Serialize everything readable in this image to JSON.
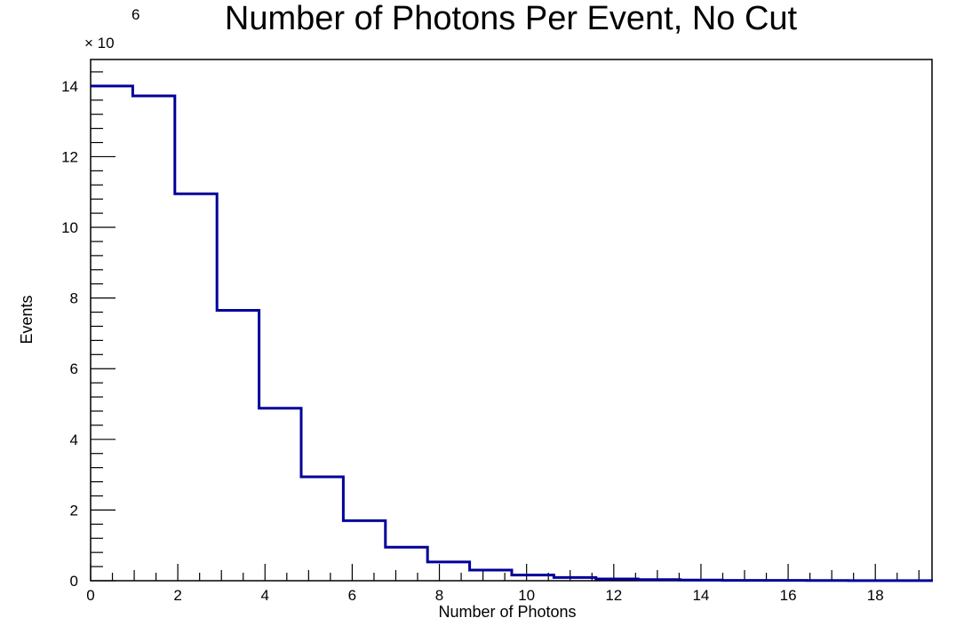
{
  "chart_data": {
    "type": "bar",
    "title": "Number of Photons Per Event, No Cut",
    "xlabel": "Number of Photons",
    "ylabel": "Events",
    "y_multiplier_base": "× 10",
    "y_multiplier_exponent": "6",
    "xlim": [
      0,
      19.3
    ],
    "ylim": [
      0,
      14.75
    ],
    "x_ticks": [
      "0",
      "2",
      "4",
      "6",
      "8",
      "10",
      "12",
      "14",
      "16",
      "18"
    ],
    "y_ticks": [
      "0",
      "2",
      "4",
      "6",
      "8",
      "10",
      "12",
      "14"
    ],
    "bin_edges": [
      0,
      0.966,
      1.932,
      2.898,
      3.864,
      4.83,
      5.796,
      6.762,
      7.728,
      8.694,
      9.66,
      10.626,
      11.592,
      12.558,
      13.524,
      14.49,
      15.456,
      16.422,
      17.388,
      18.354,
      19.32
    ],
    "values": [
      14.0,
      13.72,
      10.95,
      7.65,
      4.88,
      2.94,
      1.7,
      0.95,
      0.53,
      0.3,
      0.16,
      0.09,
      0.05,
      0.03,
      0.02,
      0.01,
      0.01,
      0.005,
      0.003,
      0.002
    ],
    "line_color": "#000099",
    "grid": false,
    "legend": false
  }
}
